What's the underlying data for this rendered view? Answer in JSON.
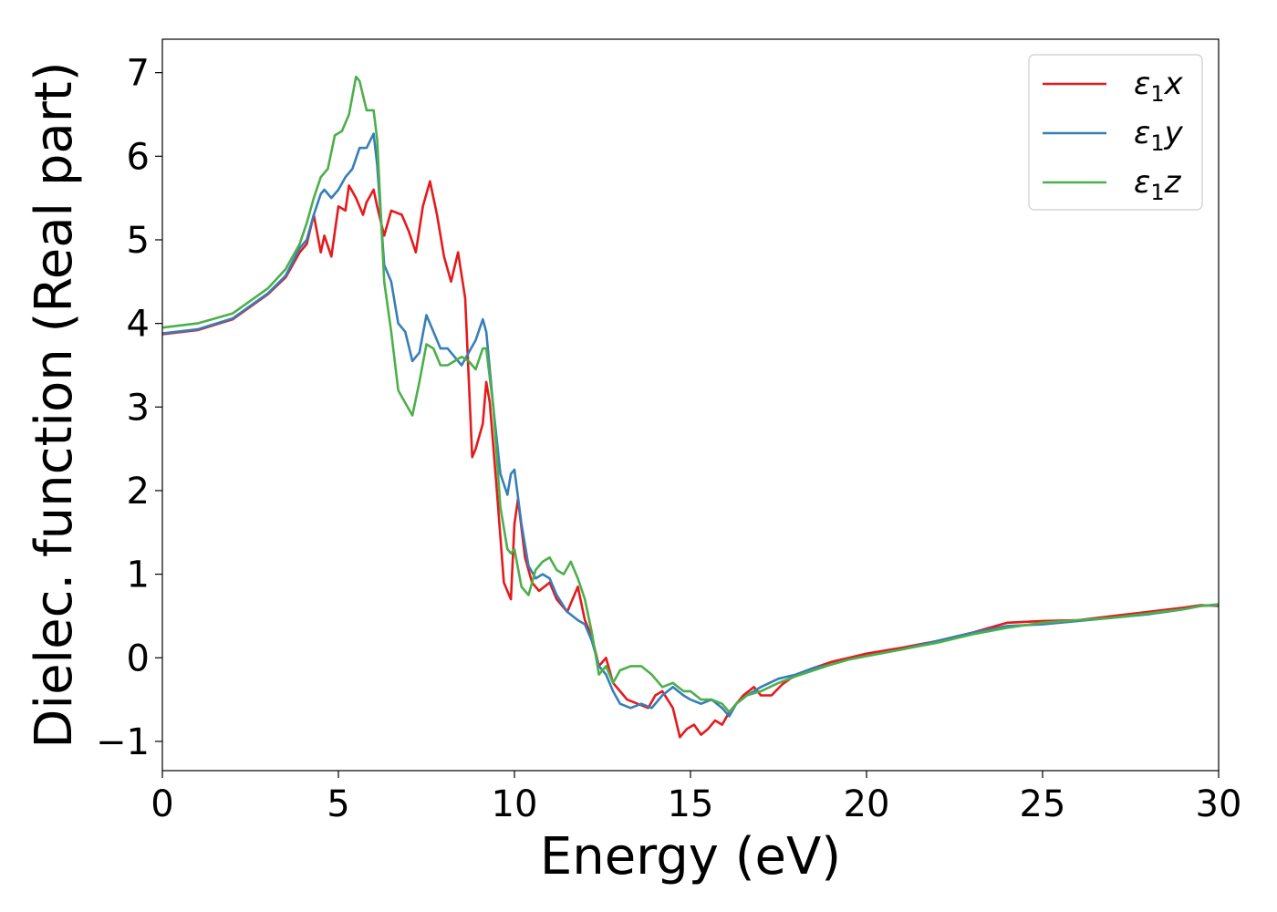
{
  "chart_data": {
    "type": "line",
    "title": "",
    "xlabel": "Energy (eV)",
    "ylabel": "Dielec. function (Real part)",
    "xlim": [
      0,
      30
    ],
    "ylim": [
      -1.35,
      7.4
    ],
    "xticks": [
      0,
      5,
      10,
      15,
      20,
      25,
      30
    ],
    "xtick_labels": [
      "0",
      "5",
      "10",
      "15",
      "20",
      "25",
      "30"
    ],
    "yticks": [
      -1,
      0,
      1,
      2,
      3,
      4,
      5,
      6,
      7
    ],
    "ytick_labels": [
      "−1",
      "0",
      "1",
      "2",
      "3",
      "4",
      "5",
      "6",
      "7"
    ],
    "grid": false,
    "legend_position": "top-right",
    "series": [
      {
        "name": "ε₁x",
        "legend_main": "ε",
        "legend_sub": "1",
        "legend_tail": "x",
        "color": "#e41a1c",
        "x": [
          0,
          1,
          2,
          3,
          3.5,
          3.9,
          4.1,
          4.3,
          4.5,
          4.6,
          4.8,
          5.0,
          5.2,
          5.3,
          5.5,
          5.7,
          5.8,
          6.0,
          6.1,
          6.3,
          6.5,
          6.8,
          7.0,
          7.2,
          7.4,
          7.6,
          7.8,
          8.0,
          8.2,
          8.4,
          8.6,
          8.8,
          8.9,
          9.1,
          9.2,
          9.3,
          9.5,
          9.7,
          9.9,
          10.0,
          10.1,
          10.3,
          10.5,
          10.7,
          11.0,
          11.2,
          11.5,
          11.8,
          12.0,
          12.2,
          12.4,
          12.6,
          12.8,
          13.0,
          13.2,
          13.5,
          13.8,
          14.0,
          14.2,
          14.5,
          14.7,
          14.9,
          15.1,
          15.3,
          15.5,
          15.7,
          15.9,
          16.1,
          16.3,
          16.5,
          16.8,
          17.0,
          17.3,
          17.6,
          18.0,
          18.5,
          19.0,
          19.5,
          20.0,
          21.0,
          22.0,
          23.0,
          24.0,
          25.0,
          26.0,
          27.0,
          28.0,
          29.0,
          29.5,
          30.0
        ],
        "values": [
          3.87,
          3.92,
          4.05,
          4.35,
          4.55,
          4.85,
          4.95,
          5.3,
          4.85,
          5.05,
          4.8,
          5.4,
          5.35,
          5.65,
          5.5,
          5.3,
          5.45,
          5.6,
          5.4,
          5.05,
          5.35,
          5.3,
          5.1,
          4.85,
          5.4,
          5.7,
          5.3,
          4.8,
          4.5,
          4.85,
          4.3,
          2.4,
          2.5,
          2.8,
          3.3,
          3.05,
          2.0,
          0.9,
          0.7,
          1.6,
          1.9,
          1.2,
          0.9,
          0.8,
          0.9,
          0.7,
          0.55,
          0.85,
          0.45,
          0.25,
          -0.1,
          0.0,
          -0.3,
          -0.4,
          -0.5,
          -0.55,
          -0.6,
          -0.45,
          -0.4,
          -0.6,
          -0.95,
          -0.85,
          -0.8,
          -0.92,
          -0.85,
          -0.75,
          -0.8,
          -0.65,
          -0.55,
          -0.45,
          -0.35,
          -0.45,
          -0.45,
          -0.32,
          -0.2,
          -0.12,
          -0.05,
          0.0,
          0.05,
          0.12,
          0.2,
          0.3,
          0.42,
          0.44,
          0.45,
          0.5,
          0.55,
          0.6,
          0.63,
          0.62
        ]
      },
      {
        "name": "ε₁y",
        "legend_main": "ε",
        "legend_sub": "1",
        "legend_tail": "y",
        "color": "#377eb8",
        "x": [
          0,
          1,
          2,
          3,
          3.5,
          3.9,
          4.1,
          4.3,
          4.5,
          4.6,
          4.8,
          5.0,
          5.2,
          5.4,
          5.6,
          5.8,
          6.0,
          6.1,
          6.3,
          6.5,
          6.7,
          6.9,
          7.1,
          7.3,
          7.5,
          7.7,
          7.9,
          8.1,
          8.3,
          8.5,
          8.7,
          8.9,
          9.1,
          9.2,
          9.4,
          9.6,
          9.8,
          9.9,
          10.0,
          10.2,
          10.4,
          10.6,
          10.8,
          11.0,
          11.2,
          11.5,
          11.8,
          12.0,
          12.2,
          12.4,
          12.6,
          12.8,
          13.0,
          13.3,
          13.6,
          13.9,
          14.2,
          14.5,
          14.8,
          15.0,
          15.3,
          15.6,
          15.9,
          16.1,
          16.3,
          16.6,
          17.0,
          17.5,
          18.0,
          18.5,
          19.0,
          19.5,
          20.0,
          21.0,
          22.0,
          23.0,
          24.0,
          25.0,
          26.0,
          27.0,
          28.0,
          29.0,
          29.5,
          30.0
        ],
        "values": [
          3.88,
          3.93,
          4.06,
          4.36,
          4.57,
          4.9,
          5.0,
          5.3,
          5.55,
          5.6,
          5.5,
          5.6,
          5.75,
          5.85,
          6.1,
          6.1,
          6.27,
          5.9,
          4.7,
          4.5,
          4.0,
          3.9,
          3.55,
          3.65,
          4.1,
          3.9,
          3.7,
          3.7,
          3.6,
          3.5,
          3.65,
          3.8,
          4.05,
          3.9,
          3.0,
          2.2,
          1.95,
          2.2,
          2.25,
          1.6,
          1.1,
          0.95,
          1.0,
          0.95,
          0.75,
          0.55,
          0.45,
          0.4,
          0.2,
          -0.1,
          -0.2,
          -0.4,
          -0.55,
          -0.6,
          -0.55,
          -0.6,
          -0.45,
          -0.35,
          -0.45,
          -0.5,
          -0.55,
          -0.5,
          -0.6,
          -0.7,
          -0.55,
          -0.45,
          -0.35,
          -0.25,
          -0.2,
          -0.12,
          -0.08,
          -0.02,
          0.02,
          0.1,
          0.2,
          0.3,
          0.38,
          0.4,
          0.44,
          0.48,
          0.52,
          0.58,
          0.62,
          0.63
        ]
      },
      {
        "name": "ε₁z",
        "legend_main": "ε",
        "legend_sub": "1",
        "legend_tail": "z",
        "color": "#4daf4a",
        "x": [
          0,
          1,
          2,
          3,
          3.5,
          3.9,
          4.1,
          4.3,
          4.5,
          4.7,
          4.9,
          5.1,
          5.3,
          5.5,
          5.6,
          5.8,
          6.0,
          6.1,
          6.3,
          6.5,
          6.7,
          6.9,
          7.1,
          7.3,
          7.5,
          7.7,
          7.9,
          8.1,
          8.3,
          8.5,
          8.7,
          8.9,
          9.1,
          9.2,
          9.4,
          9.6,
          9.8,
          9.9,
          10.0,
          10.2,
          10.4,
          10.6,
          10.8,
          11.0,
          11.2,
          11.4,
          11.6,
          11.8,
          12.0,
          12.2,
          12.4,
          12.6,
          12.8,
          13.0,
          13.3,
          13.6,
          13.9,
          14.2,
          14.5,
          14.8,
          15.0,
          15.3,
          15.6,
          15.9,
          16.1,
          16.3,
          16.6,
          17.0,
          17.5,
          18.0,
          18.5,
          19.0,
          19.5,
          20.0,
          21.0,
          22.0,
          23.0,
          24.0,
          25.0,
          26.0,
          27.0,
          28.0,
          29.0,
          29.5,
          30.0
        ],
        "values": [
          3.95,
          4.0,
          4.12,
          4.42,
          4.65,
          4.95,
          5.2,
          5.5,
          5.75,
          5.85,
          6.25,
          6.3,
          6.5,
          6.95,
          6.9,
          6.55,
          6.55,
          6.2,
          4.5,
          3.9,
          3.2,
          3.05,
          2.9,
          3.3,
          3.75,
          3.7,
          3.5,
          3.5,
          3.55,
          3.6,
          3.55,
          3.45,
          3.7,
          3.7,
          3.0,
          1.8,
          1.3,
          1.25,
          1.3,
          0.85,
          0.75,
          1.05,
          1.15,
          1.2,
          1.05,
          1.0,
          1.15,
          0.95,
          0.7,
          0.3,
          -0.2,
          -0.1,
          -0.3,
          -0.15,
          -0.1,
          -0.1,
          -0.2,
          -0.35,
          -0.3,
          -0.4,
          -0.4,
          -0.5,
          -0.5,
          -0.55,
          -0.65,
          -0.55,
          -0.45,
          -0.4,
          -0.3,
          -0.22,
          -0.15,
          -0.08,
          -0.02,
          0.02,
          0.1,
          0.18,
          0.28,
          0.36,
          0.42,
          0.45,
          0.48,
          0.53,
          0.58,
          0.62,
          0.64
        ]
      }
    ]
  }
}
